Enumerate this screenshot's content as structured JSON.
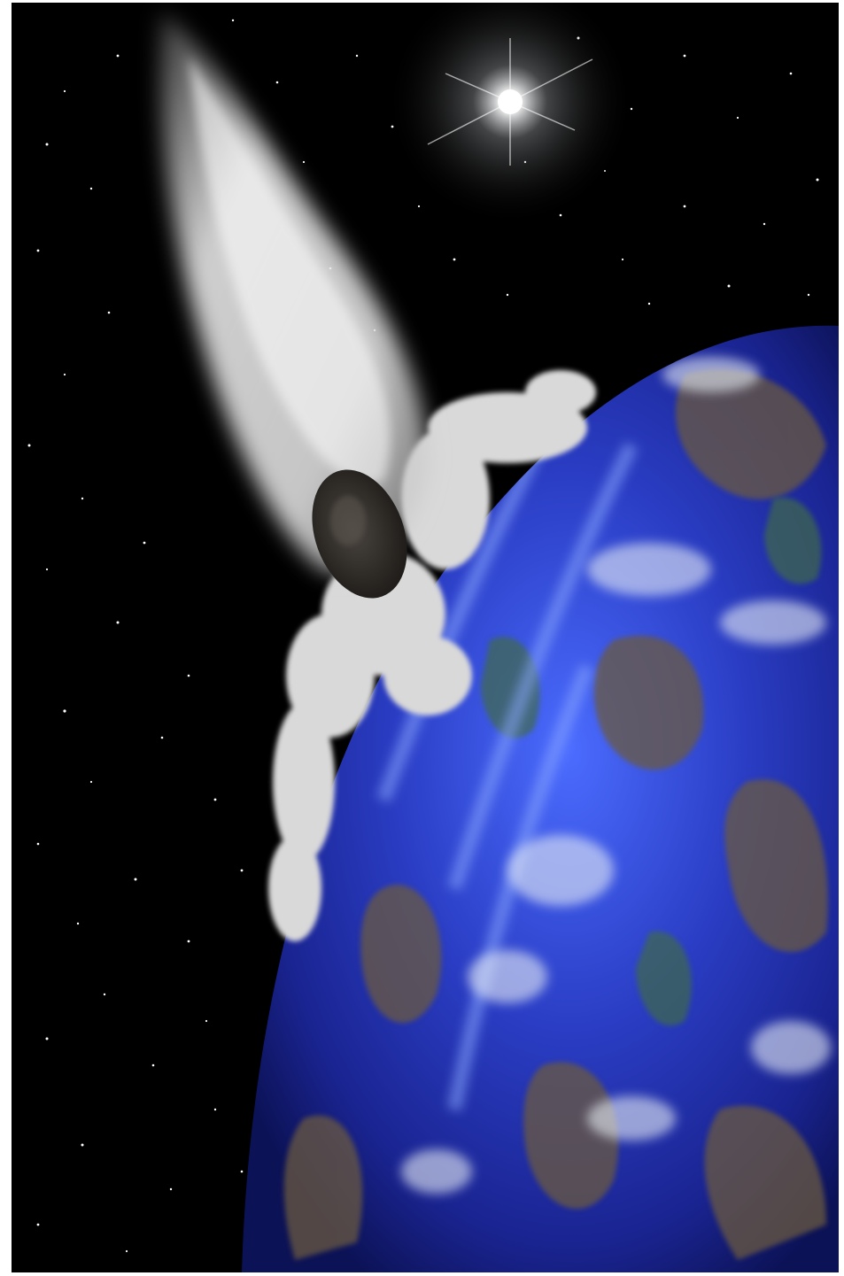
{
  "image": {
    "subject": "asteroid-impact-planet",
    "colors": {
      "space": "#000000",
      "frame_border": "#ffffff",
      "ocean_deep": "#1a1f9e",
      "ocean_bright": "#3b5cff",
      "land_brown": "#6b5a3f",
      "land_green": "#3f6b4a",
      "cloud_white": "#e8eef5",
      "impact_smoke": "#d9d9d9",
      "asteroid_dark": "#2e2a25",
      "sun_glow": "#ffffff"
    },
    "icons": [
      "sun-icon",
      "asteroid-icon",
      "planet-icon",
      "stars-icon"
    ]
  }
}
